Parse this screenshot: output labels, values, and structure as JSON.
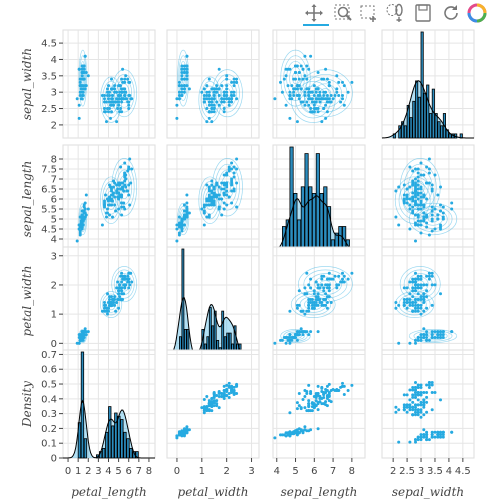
{
  "toolbar": {
    "tools": [
      {
        "name": "pan-tool-icon"
      },
      {
        "name": "box-zoom-tool-icon"
      },
      {
        "name": "box-select-tool-icon"
      },
      {
        "name": "lasso-select-tool-icon"
      },
      {
        "name": "save-tool-icon"
      },
      {
        "name": "reset-tool-icon"
      },
      {
        "name": "bokeh-logo-icon"
      }
    ]
  },
  "chart_data": {
    "type": "scatter",
    "kind": "pairplot-with-kde-and-histograms",
    "colors": {
      "points": "#26aae1",
      "hist_fill": "#2b8cbe",
      "hist_edge": "#000000",
      "kde": "#26aae1",
      "grid": "#e5e5e5",
      "frame": "#dddddd"
    },
    "variables": {
      "columns": [
        "petal_length",
        "petal_width",
        "sepal_length",
        "sepal_width"
      ],
      "rows": [
        "sepal_width",
        "sepal_length",
        "petal_width",
        "Density"
      ]
    },
    "axes": {
      "petal_length": {
        "range": [
          -0.5,
          8.6
        ],
        "ticks": [
          0,
          1,
          2,
          3,
          4,
          5,
          6,
          7,
          8
        ],
        "tick_labels": [
          "0",
          "1",
          "2",
          "3",
          "4",
          "5",
          "6",
          "7",
          "8"
        ]
      },
      "petal_width": {
        "range": [
          -0.4,
          3.3
        ],
        "ticks": [
          0,
          1,
          2,
          3
        ],
        "tick_labels": [
          "0",
          "1",
          "2",
          "3"
        ]
      },
      "sepal_length": {
        "range": [
          3.8,
          8.7
        ],
        "ticks": [
          4,
          5,
          6,
          7,
          8
        ],
        "tick_labels": [
          "4",
          "5",
          "6",
          "7",
          "8"
        ]
      },
      "sepal_width": {
        "range": [
          1.6,
          4.9
        ],
        "ticks": [
          2,
          2.5,
          3,
          3.5,
          4,
          4.5
        ],
        "tick_labels": [
          "2",
          "2.5",
          "3",
          "3.5",
          "4",
          "4.5"
        ]
      },
      "sepal_width_y": {
        "range": [
          1.6,
          4.9
        ],
        "ticks": [
          2,
          2.5,
          3,
          3.5,
          4,
          4.5
        ],
        "tick_labels": [
          "2",
          "2.5",
          "3",
          "3.5",
          "4",
          "4.5"
        ]
      },
      "sepal_length_y": {
        "range": [
          3.3,
          8.7
        ],
        "ticks": [
          4,
          4.5,
          5,
          5.5,
          6,
          6.5,
          7,
          7.5,
          8
        ],
        "tick_labels": [
          "4",
          "4.5",
          "5",
          "5.5",
          "6",
          "6.5",
          "7",
          "7.5",
          "8"
        ]
      },
      "petal_width_y": {
        "range": [
          -0.4,
          3.3
        ],
        "ticks": [
          0,
          1,
          2,
          3
        ],
        "tick_labels": [
          "0",
          "1",
          "2",
          "3"
        ]
      },
      "density_y": {
        "range": [
          0,
          0.73
        ],
        "ticks": [
          0,
          0.1,
          0.2,
          0.3,
          0.4,
          0.5,
          0.6,
          0.7
        ],
        "tick_labels": [
          "0",
          "0.1",
          "0.2",
          "0.3",
          "0.4",
          "0.5",
          "0.6",
          "0.7"
        ]
      }
    },
    "histograms": {
      "sepal_width": {
        "edges": [
          2.0,
          2.1,
          2.2,
          2.3,
          2.4,
          2.5,
          2.6,
          2.7,
          2.8,
          2.9,
          3.0,
          3.1,
          3.2,
          3.3,
          3.4,
          3.5,
          3.6,
          3.7,
          3.8,
          3.9,
          4.0,
          4.1,
          4.2,
          4.3,
          4.4
        ],
        "counts": [
          1,
          0,
          3,
          4,
          3,
          8,
          5,
          9,
          14,
          10,
          26,
          11,
          13,
          6,
          12,
          6,
          4,
          3,
          6,
          2,
          1,
          1,
          1,
          0,
          1
        ]
      },
      "sepal_length": {
        "edges": [
          4.3,
          4.5,
          4.7,
          4.9,
          5.1,
          5.3,
          5.5,
          5.7,
          5.9,
          6.1,
          6.3,
          6.5,
          6.7,
          6.9,
          7.1,
          7.3,
          7.5,
          7.7,
          7.9
        ],
        "counts": [
          4,
          5,
          16,
          9,
          5,
          10,
          15,
          10,
          9,
          15,
          9,
          10,
          7,
          2,
          3,
          4,
          4,
          2
        ]
      },
      "petal_width": {
        "edges": [
          0.1,
          0.2,
          0.3,
          0.4,
          0.5,
          0.6,
          0.7,
          0.8,
          0.9,
          1.0,
          1.1,
          1.2,
          1.3,
          1.4,
          1.5,
          1.6,
          1.7,
          1.8,
          1.9,
          2.0,
          2.1,
          2.2,
          2.3,
          2.4,
          2.5
        ],
        "counts": [
          5,
          29,
          7,
          7,
          1,
          1,
          0,
          0,
          0,
          7,
          3,
          5,
          13,
          8,
          12,
          4,
          2,
          12,
          5,
          6,
          6,
          3,
          8,
          3,
          3
        ]
      },
      "petal_length": {
        "edges": [
          1.0,
          1.3,
          1.6,
          1.9,
          2.2,
          2.5,
          2.8,
          3.1,
          3.4,
          3.7,
          4.0,
          4.3,
          4.6,
          4.9,
          5.2,
          5.5,
          5.8,
          6.1,
          6.4,
          6.7,
          7.0
        ],
        "counts": [
          11,
          33,
          6,
          0,
          0,
          0,
          1,
          2,
          3,
          8,
          16,
          10,
          14,
          13,
          12,
          8,
          6,
          3,
          2,
          2
        ]
      }
    },
    "clusters": {
      "setosa": {
        "petal_length": [
          1.46,
          0.17
        ],
        "petal_width": [
          0.25,
          0.1
        ],
        "sepal_length": [
          5.0,
          0.35
        ],
        "sepal_width": [
          3.43,
          0.38
        ],
        "n": 50
      },
      "versicolor": {
        "petal_length": [
          4.26,
          0.47
        ],
        "petal_width": [
          1.33,
          0.2
        ],
        "sepal_length": [
          5.94,
          0.52
        ],
        "sepal_width": [
          2.77,
          0.31
        ],
        "n": 50
      },
      "virginica": {
        "petal_length": [
          5.55,
          0.55
        ],
        "petal_width": [
          2.03,
          0.27
        ],
        "sepal_length": [
          6.59,
          0.64
        ],
        "sepal_width": [
          2.97,
          0.32
        ],
        "n": 50
      }
    }
  }
}
